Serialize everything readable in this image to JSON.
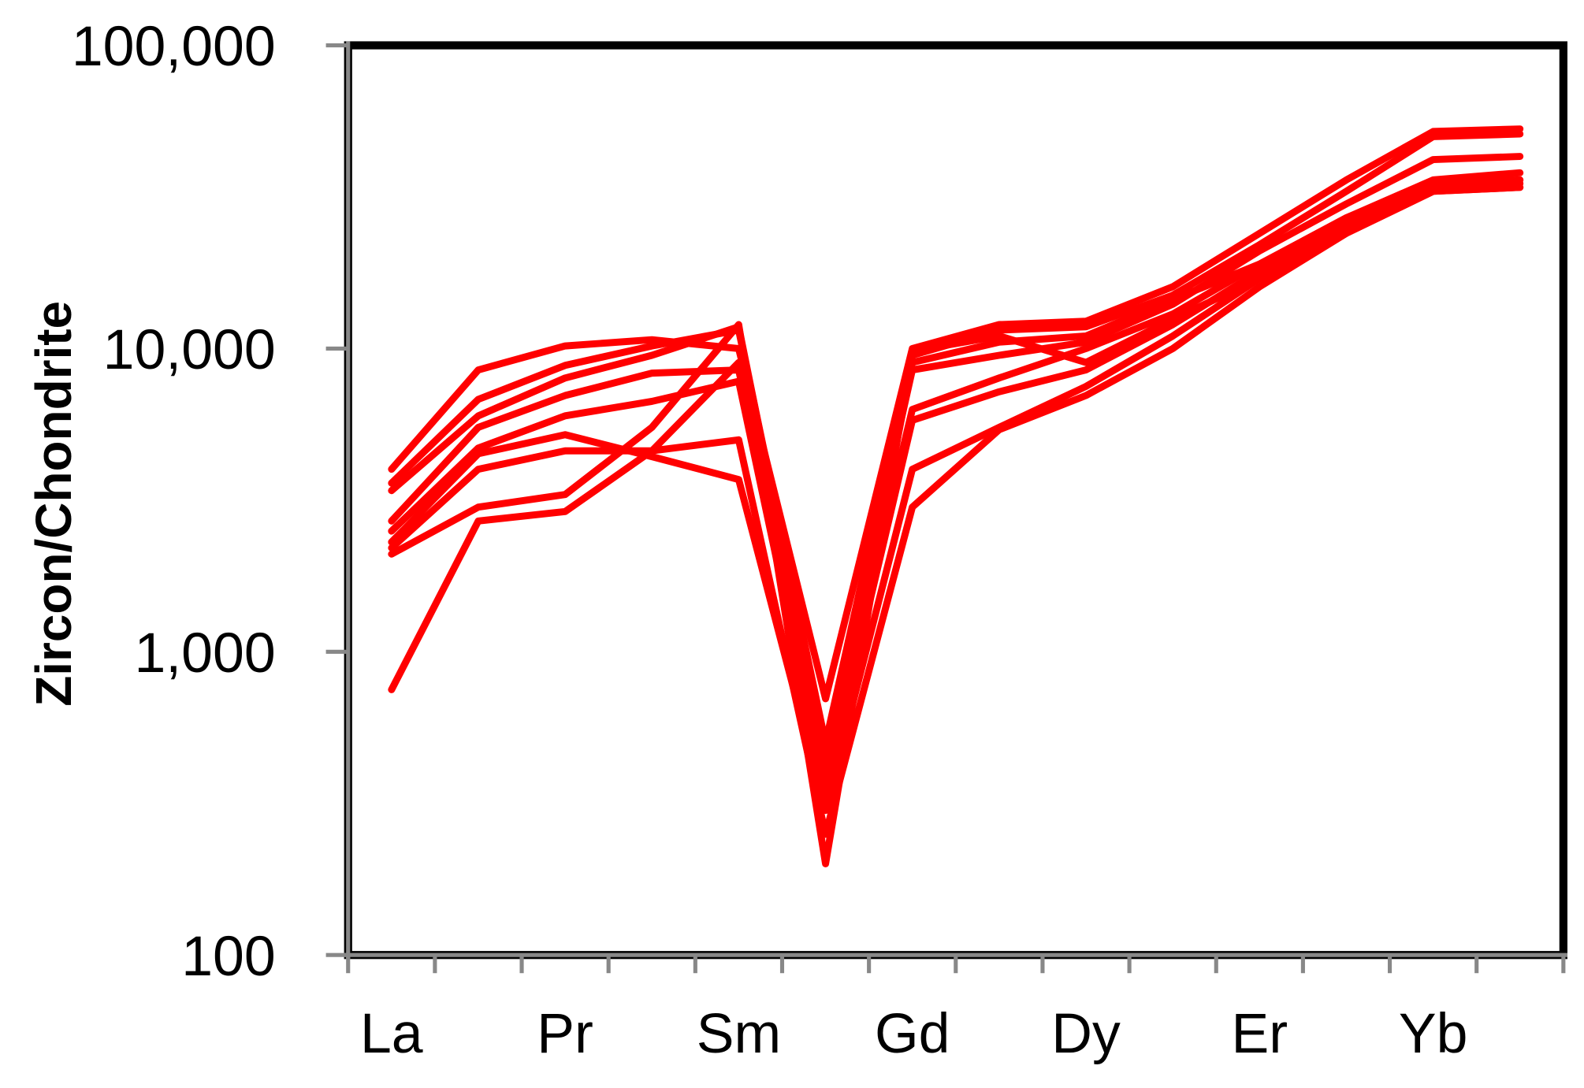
{
  "chart_data": {
    "type": "line",
    "y_label": "Zircon/Chondrite",
    "log_scale": true,
    "categories": [
      "La",
      null,
      "Pr",
      null,
      "Sm",
      null,
      "Gd",
      null,
      "Dy",
      null,
      "Er",
      null,
      "Yb",
      null
    ],
    "ylim": [
      100,
      100000
    ],
    "yticks": [
      100,
      {
        "value": 1000,
        "label": "1,000"
      },
      {
        "value": 10000,
        "label": "10,000"
      },
      {
        "value": 100000,
        "label": "100,000"
      }
    ],
    "series": [
      {
        "color": "#ff0000",
        "values": [
          4000,
          8500,
          10200,
          10700,
          10000,
          700,
          10000,
          12000,
          12300,
          16000,
          24000,
          36000,
          52000,
          53000
        ]
      },
      {
        "color": "#ff0000",
        "values": [
          3600,
          6800,
          8800,
          10200,
          11500,
          500,
          9500,
          11500,
          11800,
          15000,
          22000,
          33000,
          50000,
          51000
        ]
      },
      {
        "color": "#ff0000",
        "values": [
          3400,
          6000,
          8000,
          9500,
          11800,
          450,
          8500,
          9500,
          10500,
          14000,
          21000,
          30000,
          42000,
          43000
        ]
      },
      {
        "color": "#ff0000",
        "values": [
          2700,
          5500,
          7000,
          8300,
          8500,
          400,
          6300,
          8000,
          10000,
          13000,
          19000,
          27000,
          36000,
          38000
        ]
      },
      {
        "color": "#ff0000",
        "values": [
          2500,
          4700,
          6000,
          6700,
          7800,
          350,
          5800,
          7200,
          8500,
          12000,
          18000,
          26000,
          35000,
          36000
        ]
      },
      {
        "color": "#ff0000",
        "values": [
          2300,
          4500,
          5200,
          4400,
          3700,
          300,
          4000,
          5500,
          7500,
          11000,
          17000,
          25000,
          34000,
          35000
        ]
      },
      {
        "color": "#ff0000",
        "values": [
          2200,
          4000,
          4600,
          4600,
          5000,
          250,
          3000,
          5400,
          7000,
          10000,
          16000,
          24000,
          33000,
          34000
        ]
      },
      {
        "color": "#ff0000",
        "values": [
          2100,
          3000,
          3300,
          5500,
          12000,
          200,
          9800,
          11000,
          9000,
          12500,
          17000,
          24000,
          33000,
          34000
        ]
      },
      {
        "color": "#ff0000",
        "values": [
          750,
          2700,
          2900,
          4600,
          9000,
          300,
          9000,
          10500,
          11000,
          14500,
          19000,
          27000,
          35000,
          36000
        ]
      }
    ]
  }
}
